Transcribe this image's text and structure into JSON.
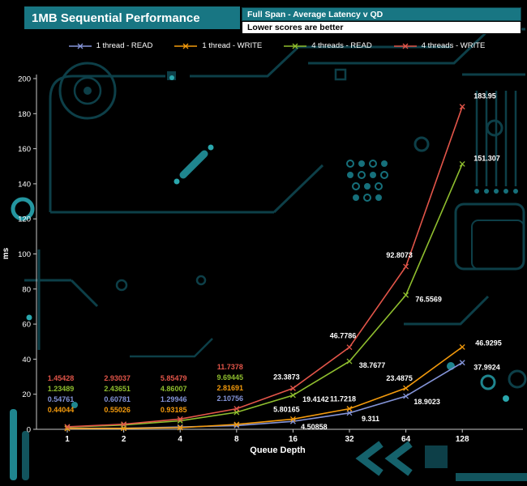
{
  "header": {
    "title": "1MB Sequential Performance",
    "subtitle": "Full Span - Average Latency v QD",
    "note": "Lower scores are better"
  },
  "colors": {
    "teal_header": "#187683",
    "series_read1": "#8494d8",
    "series_write1": "#f39a0c",
    "series_read4": "#8fbe2e",
    "series_write4": "#e25549",
    "axis_text": "#ffffff"
  },
  "chart_data": {
    "type": "line",
    "title": "1MB Sequential Performance",
    "subtitle": "Full Span - Average Latency v QD",
    "note": "Lower scores are better",
    "xlabel": "Queue Depth",
    "ylabel": "ms",
    "ylim": [
      0,
      200
    ],
    "ytick_step": 20,
    "grid": false,
    "legend_position": "top",
    "marker": "x",
    "categories": [
      "1",
      "2",
      "4",
      "8",
      "16",
      "32",
      "64",
      "128"
    ],
    "series": [
      {
        "name": "1 thread - READ",
        "color": "#8494d8",
        "values": [
          0.54761,
          0.60781,
          1.29946,
          2.10756,
          4.50858,
          9.311,
          18.9023,
          37.9924
        ]
      },
      {
        "name": "1 thread - WRITE",
        "color": "#f39a0c",
        "values": [
          0.44044,
          0.55026,
          0.93185,
          2.81691,
          5.80165,
          11.7218,
          23.4875,
          46.9295
        ]
      },
      {
        "name": "4 threads - READ",
        "color": "#8fbe2e",
        "values": [
          1.23489,
          2.43651,
          4.86007,
          9.69445,
          19.4142,
          38.7677,
          76.5569,
          151.307
        ]
      },
      {
        "name": "4 threads - WRITE",
        "color": "#e25549",
        "values": [
          1.45428,
          2.93037,
          5.85479,
          11.7378,
          23.3873,
          46.7786,
          92.8073,
          183.95
        ]
      }
    ]
  }
}
